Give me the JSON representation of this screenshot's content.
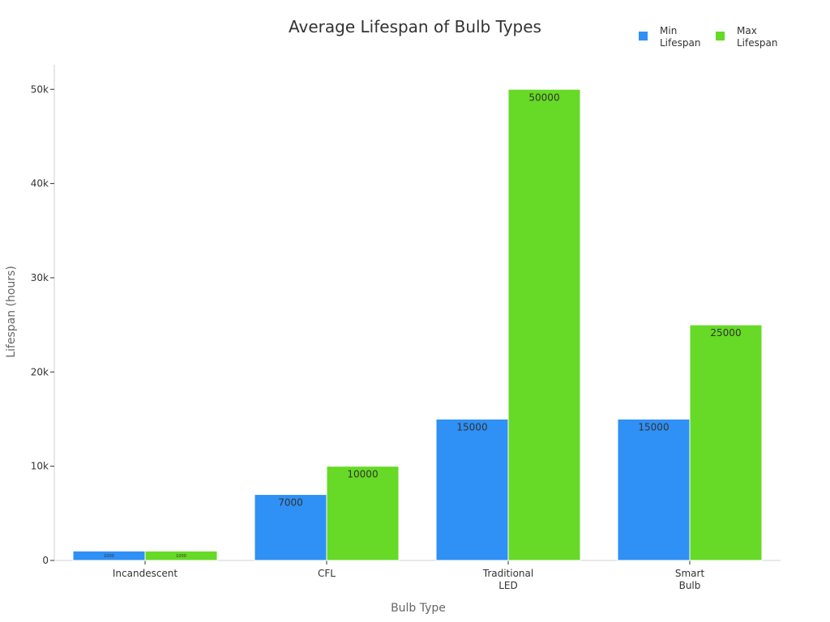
{
  "chart_data": {
    "type": "bar",
    "title": "Average Lifespan of Bulb Types",
    "xlabel": "Bulb Type",
    "ylabel": "Lifespan (hours)",
    "categories": [
      [
        "Incandescent"
      ],
      [
        "CFL"
      ],
      [
        "Traditional",
        "LED"
      ],
      [
        "Smart",
        "Bulb"
      ]
    ],
    "series": [
      {
        "name": [
          "Min",
          "Lifespan"
        ],
        "color": "#2f90f5",
        "values": [
          1000,
          7000,
          15000,
          15000
        ],
        "labels": [
          "1000",
          "7000",
          "15000",
          "15000"
        ]
      },
      {
        "name": [
          "Max",
          "Lifespan"
        ],
        "color": "#66da26",
        "values": [
          1000,
          10000,
          50000,
          25000
        ],
        "labels": [
          "1000",
          "10000",
          "50000",
          "25000"
        ]
      }
    ],
    "ylim": [
      0,
      52600
    ],
    "yticks": [
      0,
      10000,
      20000,
      30000,
      40000,
      50000
    ],
    "ytick_labels": [
      "0",
      "10k",
      "20k",
      "30k",
      "40k",
      "50k"
    ],
    "grid": false,
    "legend_position": "top-right"
  }
}
